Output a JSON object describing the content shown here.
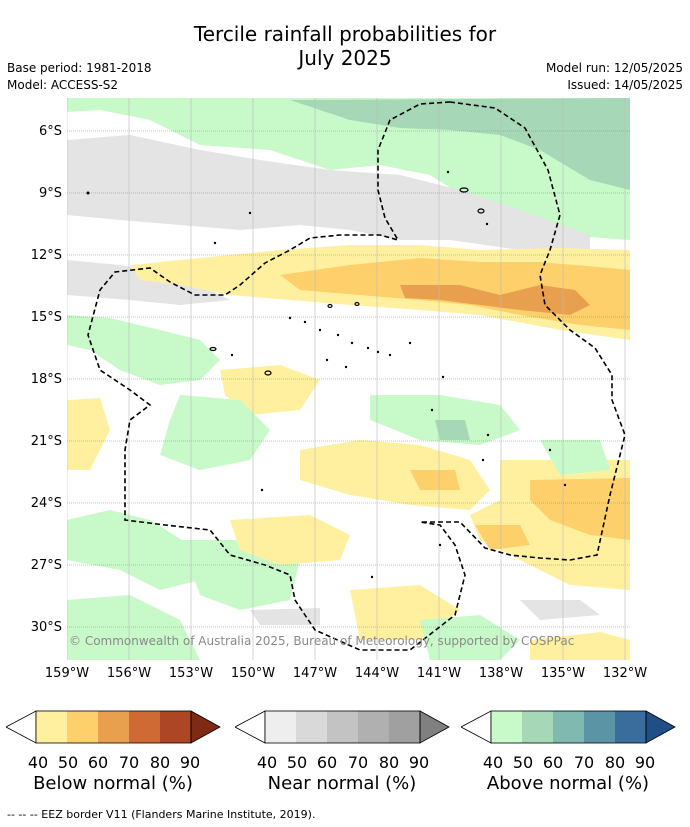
{
  "title_line1": "Tercile rainfall probabilities for",
  "title_line2": "July 2025",
  "base_period": "Base period: 1981-2018",
  "model": "Model: ACCESS-S2",
  "model_run": "Model run: 12/05/2025",
  "issued": "Issued: 14/05/2025",
  "lat_labels": [
    "6°S",
    "9°S",
    "12°S",
    "15°S",
    "18°S",
    "21°S",
    "24°S",
    "27°S",
    "30°S"
  ],
  "lon_labels": [
    "159°W",
    "156°W",
    "153°W",
    "150°W",
    "147°W",
    "144°W",
    "141°W",
    "138°W",
    "135°W",
    "132°W"
  ],
  "copyright": "© Commonwealth of Australia 2025, Bureau of Meteorology, supported by COSPPac",
  "legends": [
    {
      "title": "Below normal (%)",
      "ticks": [
        "40",
        "50",
        "60",
        "70",
        "80",
        "90"
      ],
      "colors": [
        "#fff0a0",
        "#fdd06b",
        "#e8a04e",
        "#d06a35",
        "#ad4624",
        "#7f2a14"
      ]
    },
    {
      "title": "Near normal (%)",
      "ticks": [
        "40",
        "50",
        "60",
        "70",
        "80",
        "90"
      ],
      "colors": [
        "#eeeeee",
        "#d9d9d9",
        "#c3c3c3",
        "#b0b0b0",
        "#a0a0a0",
        "#808080"
      ]
    },
    {
      "title": "Above normal (%)",
      "ticks": [
        "40",
        "50",
        "60",
        "70",
        "80",
        "90"
      ],
      "colors": [
        "#c8f9c8",
        "#a6d8b8",
        "#7fb9b0",
        "#5b95a5",
        "#3a6d9c",
        "#1f4f86"
      ]
    }
  ],
  "eez_note": "--  --  -- EEZ border V11 (Flanders Marine Institute, 2019)."
}
